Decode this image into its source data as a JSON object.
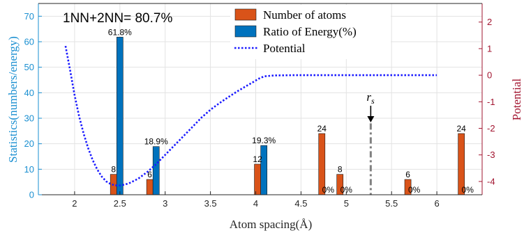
{
  "chart_data": {
    "type": "bar",
    "annotation": "1NN+2NN= 80.7%",
    "xlabel": "Atom spacing(Å)",
    "ylabel_left": "Statistics(numbers/energy)",
    "ylabel_right": "Potential",
    "xlim": [
      1.6,
      6.5
    ],
    "ylim_left": [
      0,
      75
    ],
    "ylim_right": [
      -4.5,
      2.7
    ],
    "xticks": [
      2,
      2.5,
      3,
      3.5,
      4,
      4.5,
      5,
      5.5,
      6
    ],
    "xtick_labels": [
      "2",
      "2.5",
      "3",
      "3.5",
      "4",
      "4.5",
      "5",
      "5.5",
      "6"
    ],
    "yticks_left": [
      0,
      10,
      20,
      30,
      40,
      50,
      60,
      70
    ],
    "ytick_labels_left": [
      "0",
      "10",
      "20",
      "30",
      "40",
      "50",
      "60",
      "70"
    ],
    "yticks_right": [
      -4,
      -3,
      -2,
      -1,
      0,
      1,
      2
    ],
    "ytick_labels_right": [
      "-4",
      "-3",
      "-2",
      "-1",
      "0",
      "1",
      "2"
    ],
    "grid": true,
    "legend_position": "top-center",
    "colors": {
      "atoms": "#d95319",
      "energy": "#0072bd",
      "potential": "#1a1aff",
      "left_axis": "#1a8fd1",
      "right_axis": "#a2142f",
      "rs_marker": "#808080"
    },
    "series": [
      {
        "name": "Number of atoms",
        "x": [
          2.43,
          2.83,
          4.02,
          4.73,
          4.93,
          5.68,
          6.27
        ],
        "values": [
          8,
          6,
          12,
          24,
          8,
          6,
          24
        ],
        "labels": [
          "8",
          "6",
          "12",
          "24",
          "8",
          "6",
          "24"
        ]
      },
      {
        "name": "Ratio of Energy(%)",
        "x": [
          2.5,
          2.9,
          4.09,
          4.8,
          5.0,
          5.75,
          6.34
        ],
        "values": [
          61.8,
          18.9,
          19.3,
          0,
          0,
          0,
          0
        ],
        "labels": [
          "61.8%",
          "18.9%",
          "19.3%",
          "0%",
          "0%",
          "0%",
          "0%"
        ]
      },
      {
        "name": "Potential",
        "axis": "right",
        "x": [
          1.9,
          1.95,
          2.0,
          2.05,
          2.1,
          2.15,
          2.2,
          2.25,
          2.3,
          2.35,
          2.4,
          2.45,
          2.5,
          2.55,
          2.6,
          2.7,
          2.8,
          2.9,
          3.0,
          3.1,
          3.2,
          3.3,
          3.4,
          3.5,
          3.6,
          3.7,
          3.8,
          3.9,
          4.0,
          4.05,
          4.1,
          4.2,
          4.4,
          4.6,
          5.0,
          5.5,
          6.0
        ],
        "values": [
          1.1,
          0.2,
          -0.75,
          -1.55,
          -2.2,
          -2.75,
          -3.2,
          -3.55,
          -3.82,
          -4.0,
          -4.1,
          -4.15,
          -4.15,
          -4.12,
          -4.07,
          -3.9,
          -3.65,
          -3.35,
          -3.0,
          -2.65,
          -2.3,
          -1.95,
          -1.6,
          -1.3,
          -1.05,
          -0.82,
          -0.6,
          -0.4,
          -0.2,
          -0.1,
          -0.04,
          -0.01,
          0.0,
          0.0,
          0.0,
          0.0,
          0.0
        ]
      }
    ],
    "rs_marker": {
      "label": "r",
      "subscript": "s",
      "x": 5.27,
      "y_top_left": 28
    }
  }
}
